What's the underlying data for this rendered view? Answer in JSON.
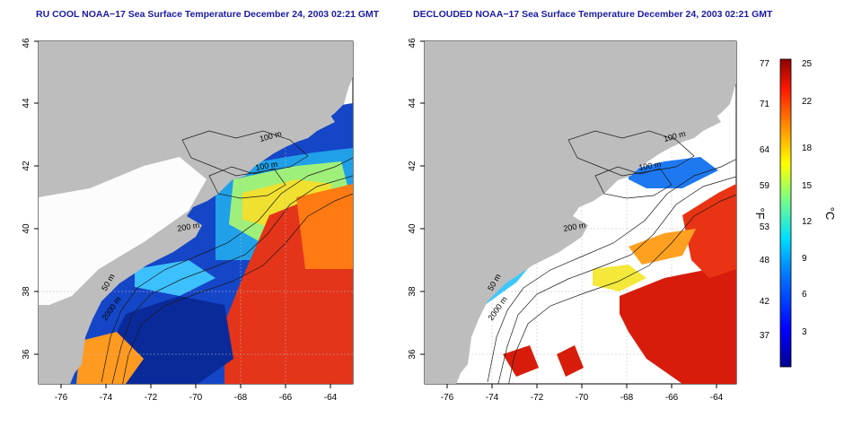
{
  "titles": {
    "left": "RU COOL NOAA−17 Sea Surface Temperature December 24, 2003 02:21 GMT",
    "right": "DECLOUDED NOAA−17 Sea Surface Temperature December 24, 2003 02:21 GMT"
  },
  "axes": {
    "lon_ticks": [
      "-76",
      "-74",
      "-72",
      "-70",
      "-68",
      "-66",
      "-64"
    ],
    "lat_ticks": [
      "36",
      "38",
      "40",
      "42",
      "44",
      "46"
    ]
  },
  "contours": {
    "label_100a": "100 m",
    "label_100b": "100 m",
    "label_200": "200 m",
    "label_50": "50 m",
    "label_2000": "2000 m"
  },
  "colorbar": {
    "f_label": "°F",
    "c_label": "°C",
    "f_ticks": [
      "77",
      "71",
      "64",
      "59",
      "53",
      "48",
      "42",
      "37"
    ],
    "c_ticks": [
      "25",
      "22",
      "18",
      "15",
      "12",
      "9",
      "6",
      "3"
    ]
  },
  "colors": {
    "land": "#bdbdbd",
    "title": "#1a1aa6",
    "cold": "#0a1f9e",
    "warm": "#d81c0c"
  }
}
